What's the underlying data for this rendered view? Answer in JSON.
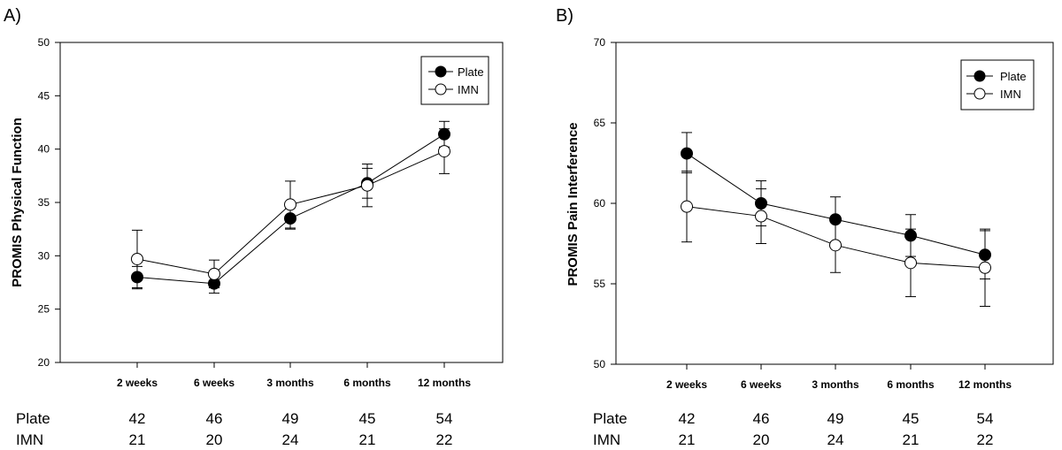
{
  "chart_data": [
    {
      "panel": "A)",
      "type": "line",
      "ylabel": "PROMIS Physical Function",
      "xlabel": "",
      "ylim": [
        20,
        50
      ],
      "yticks": [
        20,
        25,
        30,
        35,
        40,
        45,
        50
      ],
      "categories": [
        "2 weeks",
        "6 weeks",
        "3 months",
        "6 months",
        "12 months"
      ],
      "legend_position": "top-right",
      "series": [
        {
          "name": "Plate",
          "marker": "filled-circle",
          "values": [
            28.0,
            27.4,
            33.5,
            36.8,
            41.4
          ],
          "error_low": [
            26.9,
            26.5,
            32.5,
            35.4,
            40.2
          ],
          "error_high": [
            29.0,
            28.3,
            34.5,
            38.2,
            42.6
          ]
        },
        {
          "name": "IMN",
          "marker": "open-circle",
          "values": [
            29.7,
            28.3,
            34.8,
            36.6,
            39.8
          ],
          "error_low": [
            27.0,
            27.0,
            32.6,
            34.6,
            37.7
          ],
          "error_high": [
            32.4,
            29.6,
            37.0,
            38.6,
            41.9
          ]
        }
      ],
      "n_table": {
        "rows": [
          {
            "label": "Plate",
            "values": [
              "42",
              "46",
              "49",
              "45",
              "54"
            ]
          },
          {
            "label": "IMN",
            "values": [
              "21",
              "20",
              "24",
              "21",
              "22"
            ]
          }
        ]
      }
    },
    {
      "panel": "B)",
      "type": "line",
      "ylabel": "PROMIS Pain Interference",
      "xlabel": "",
      "ylim": [
        50,
        70
      ],
      "yticks": [
        50,
        55,
        60,
        65,
        70
      ],
      "categories": [
        "2 weeks",
        "6 weeks",
        "3 months",
        "6 months",
        "12 months"
      ],
      "legend_position": "top-right",
      "series": [
        {
          "name": "Plate",
          "marker": "filled-circle",
          "values": [
            63.1,
            60.0,
            59.0,
            58.0,
            56.8
          ],
          "error_low": [
            61.9,
            58.6,
            57.6,
            56.7,
            55.3
          ],
          "error_high": [
            64.4,
            61.4,
            60.4,
            59.3,
            58.3
          ]
        },
        {
          "name": "IMN",
          "marker": "open-circle",
          "values": [
            59.8,
            59.2,
            57.4,
            56.3,
            56.0
          ],
          "error_low": [
            57.6,
            57.5,
            55.7,
            54.2,
            53.6
          ],
          "error_high": [
            62.0,
            60.9,
            59.1,
            58.4,
            58.4
          ]
        }
      ],
      "n_table": {
        "rows": [
          {
            "label": "Plate",
            "values": [
              "42",
              "46",
              "49",
              "45",
              "54"
            ]
          },
          {
            "label": "IMN",
            "values": [
              "21",
              "20",
              "24",
              "21",
              "22"
            ]
          }
        ]
      }
    }
  ]
}
